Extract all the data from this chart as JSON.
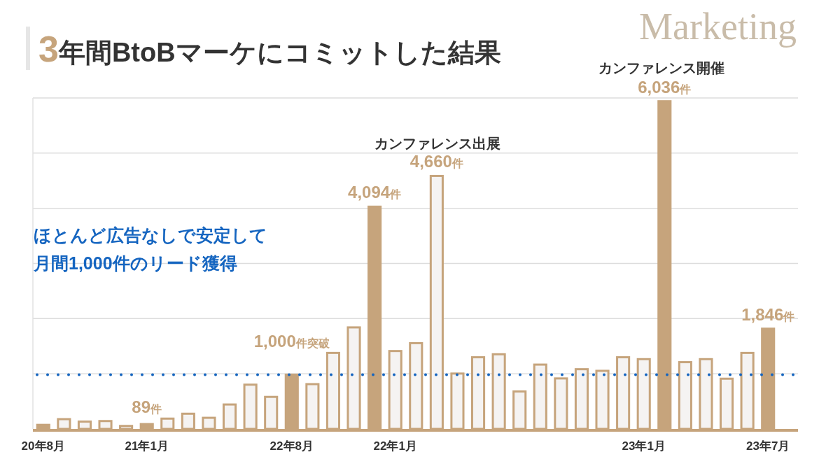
{
  "chart_data": {
    "type": "bar",
    "title": "3年間BtoBマーケにコミットした結果",
    "categories": [
      "20年8月",
      null,
      null,
      null,
      null,
      "21年1月",
      null,
      null,
      null,
      null,
      null,
      null,
      "22年8月",
      null,
      null,
      null,
      null,
      "22年1月",
      null,
      null,
      null,
      null,
      null,
      null,
      null,
      null,
      null,
      null,
      null,
      "23年1月",
      null,
      null,
      null,
      null,
      null,
      "23年7月"
    ],
    "values": [
      75,
      180,
      135,
      145,
      55,
      89,
      190,
      280,
      205,
      450,
      815,
      590,
      1000,
      825,
      1400,
      1870,
      4094,
      1435,
      1580,
      4660,
      1020,
      1320,
      1375,
      690,
      1185,
      930,
      1100,
      1070,
      1320,
      1285,
      6036,
      1230,
      1285,
      925,
      1400,
      1846
    ],
    "color": "#c6a47c",
    "colors": [
      "#c6a47c",
      "#f5f3f2",
      "#f5f3f2",
      "#f5f3f2",
      "#f5f3f2",
      "#c6a47c",
      "#f5f3f2",
      "#f5f3f2",
      "#f5f3f2",
      "#f5f3f2",
      "#f5f3f2",
      "#f5f3f2",
      "#c6a47c",
      "#f5f3f2",
      "#f5f3f2",
      "#f5f3f2",
      "#c6a47c",
      "#f5f3f2",
      "#f5f3f2",
      "#f5f3f2",
      "#f5f3f2",
      "#f5f3f2",
      "#f5f3f2",
      "#f5f3f2",
      "#f5f3f2",
      "#f5f3f2",
      "#f5f3f2",
      "#f5f3f2",
      "#f5f3f2",
      "#f5f3f2",
      "#c6a47c",
      "#f5f3f2",
      "#f5f3f2",
      "#f5f3f2",
      "#f5f3f2",
      "#c6a47c"
    ],
    "value_labels": [
      null,
      null,
      null,
      null,
      null,
      "89件",
      null,
      null,
      null,
      null,
      null,
      null,
      "1,000件突破",
      null,
      null,
      null,
      "4,094件",
      null,
      null,
      "4,660件",
      null,
      null,
      null,
      null,
      null,
      null,
      null,
      null,
      null,
      null,
      "6,036件",
      null,
      null,
      null,
      null,
      "1,846件"
    ],
    "tick_labels": "x",
    "annotations": [
      "カンファレンス出展",
      "カンファレンス開催",
      "ほとんど広告なしで安定して",
      "月間1,000件のリード獲得",
      "Marketing"
    ],
    "ref_lines": [
      {
        "axis": "y",
        "value": 1000,
        "color": "#1565c0",
        "line_style": "dotted"
      }
    ],
    "grid": "y"
  }
}
